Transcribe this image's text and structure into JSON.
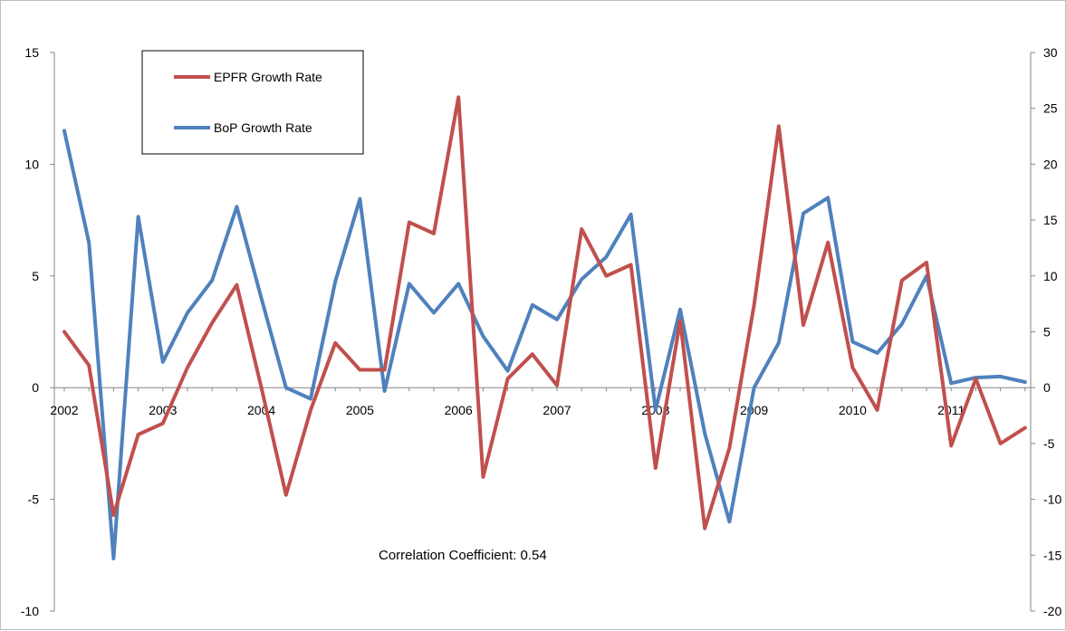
{
  "chart_data": {
    "type": "line",
    "title": "",
    "xlabel": "",
    "ylabel": "",
    "x_tick_labels": [
      "2002",
      "2003",
      "2004",
      "2005",
      "2006",
      "2007",
      "2008",
      "2009",
      "2010",
      "2011"
    ],
    "y_left": {
      "ylim": [
        -10,
        15
      ],
      "ticks": [
        -10,
        -5,
        0,
        5,
        10,
        15
      ]
    },
    "y_right": {
      "ylim": [
        -20,
        30
      ],
      "ticks": [
        -20,
        -15,
        -10,
        -5,
        0,
        5,
        10,
        15,
        20,
        25,
        30
      ]
    },
    "x": [
      "2002-Q1",
      "2002-Q2",
      "2002-Q3",
      "2002-Q4",
      "2003-Q1",
      "2003-Q2",
      "2003-Q3",
      "2003-Q4",
      "2004-Q1",
      "2004-Q2",
      "2004-Q3",
      "2004-Q4",
      "2005-Q1",
      "2005-Q2",
      "2005-Q3",
      "2005-Q4",
      "2006-Q1",
      "2006-Q2",
      "2006-Q3",
      "2006-Q4",
      "2007-Q1",
      "2007-Q2",
      "2007-Q3",
      "2007-Q4",
      "2008-Q1",
      "2008-Q2",
      "2008-Q3",
      "2008-Q4",
      "2009-Q1",
      "2009-Q2",
      "2009-Q3",
      "2009-Q4",
      "2010-Q1",
      "2010-Q2",
      "2010-Q3",
      "2010-Q4",
      "2011-Q1",
      "2011-Q2",
      "2011-Q3",
      "2011-Q4"
    ],
    "series": [
      {
        "name": "EPFR Growth Rate",
        "axis": "left",
        "color": "#c0504d",
        "values": [
          2.5,
          1.0,
          -5.7,
          -2.1,
          -1.6,
          0.9,
          2.9,
          4.6,
          0.0,
          -4.8,
          -1.0,
          2.0,
          0.8,
          0.8,
          7.4,
          6.9,
          13.0,
          -4.0,
          0.4,
          1.5,
          0.1,
          7.1,
          5.0,
          5.5,
          -3.6,
          3.0,
          -6.3,
          -2.7,
          3.7,
          11.7,
          2.8,
          6.5,
          0.9,
          -1.0,
          4.8,
          5.6,
          -2.6,
          0.4,
          -2.5,
          -1.8
        ]
      },
      {
        "name": "BoP Growth Rate",
        "axis": "right",
        "color": "#4f81bd",
        "values": [
          23.0,
          13.0,
          -15.3,
          15.3,
          2.3,
          6.7,
          9.6,
          16.2,
          8.0,
          0.0,
          -1.0,
          9.5,
          16.9,
          -0.3,
          9.3,
          6.7,
          9.3,
          4.6,
          1.5,
          7.4,
          6.1,
          9.7,
          11.7,
          15.5,
          -2.0,
          7.0,
          -4.1,
          -12.0,
          0.0,
          4.0,
          15.6,
          17.0,
          4.1,
          3.1,
          5.7,
          10.0,
          0.4,
          0.9,
          1.0,
          0.5
        ]
      }
    ],
    "legend": {
      "placement": "top-left",
      "entries": [
        "EPFR Growth Rate",
        "BoP Growth Rate"
      ]
    },
    "annotation": "Correlation Coefficient: 0.54",
    "grid": false
  }
}
